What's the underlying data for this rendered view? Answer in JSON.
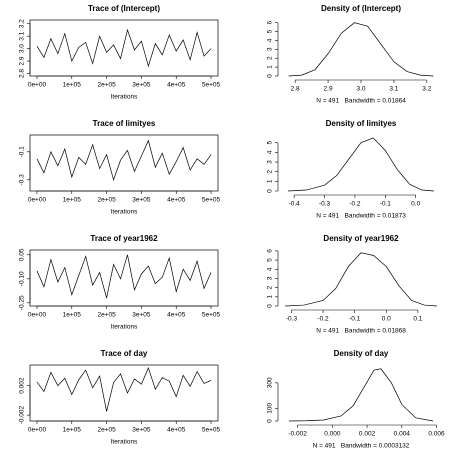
{
  "chart_data": [
    {
      "type": "line",
      "title": "Trace of (Intercept)",
      "xlabel": "Iterations",
      "box": true,
      "color": "#000000",
      "x": [
        0,
        20000,
        40000,
        60000,
        80000,
        100000,
        120000,
        140000,
        160000,
        180000,
        200000,
        220000,
        240000,
        260000,
        280000,
        300000,
        320000,
        340000,
        360000,
        380000,
        400000,
        420000,
        440000,
        460000,
        480000,
        500000
      ],
      "values": [
        3.02,
        2.93,
        3.08,
        2.96,
        3.12,
        2.9,
        3.01,
        3.05,
        2.88,
        3.1,
        2.97,
        3.03,
        2.92,
        3.15,
        2.99,
        3.06,
        2.86,
        3.04,
        2.95,
        3.11,
        2.98,
        3.07,
        2.91,
        3.13,
        2.94,
        3.0
      ],
      "xlim": [
        -20000,
        520000
      ],
      "xticks": [
        {
          "value": 0,
          "label": "0e+00"
        },
        {
          "value": 100000,
          "label": "1e+05"
        },
        {
          "value": 200000,
          "label": "2e+05"
        },
        {
          "value": 300000,
          "label": "3e+05"
        },
        {
          "value": 400000,
          "label": "4e+05"
        },
        {
          "value": 500000,
          "label": "5e+05"
        }
      ],
      "ylim": [
        2.78,
        3.23
      ],
      "yticks": [
        2.8,
        2.9,
        {
          "value": 3,
          "label": "3.0"
        },
        3.1,
        3.2
      ]
    },
    {
      "type": "line",
      "title": "Density of (Intercept)",
      "subtitle": "N = 491   Bandwidth = 0.01864",
      "box": false,
      "color": "#000000",
      "x": [
        2.78,
        2.82,
        2.86,
        2.9,
        2.94,
        2.98,
        3.02,
        3.06,
        3.1,
        3.14,
        3.18,
        3.22
      ],
      "values": [
        0,
        0.1,
        0.7,
        2.5,
        4.8,
        6.0,
        5.6,
        3.6,
        1.6,
        0.5,
        0.1,
        0
      ],
      "xlim": [
        2.76,
        3.24
      ],
      "xticks": [
        2.8,
        2.9,
        {
          "value": 3,
          "label": "3.0"
        },
        3.1,
        3.2
      ],
      "ylim": [
        0,
        6.3
      ],
      "yticks": [
        0,
        1,
        2,
        3,
        4,
        5,
        6
      ]
    },
    {
      "type": "line",
      "title": "Trace of limityes",
      "xlabel": "Iterations",
      "box": true,
      "color": "#000000",
      "x": [
        0,
        20000,
        40000,
        60000,
        80000,
        100000,
        120000,
        140000,
        160000,
        180000,
        200000,
        220000,
        240000,
        260000,
        280000,
        300000,
        320000,
        340000,
        360000,
        380000,
        400000,
        420000,
        440000,
        460000,
        480000,
        500000
      ],
      "values": [
        -0.15,
        -0.25,
        -0.1,
        -0.2,
        -0.08,
        -0.28,
        -0.14,
        -0.19,
        -0.05,
        -0.22,
        -0.12,
        -0.3,
        -0.16,
        -0.09,
        -0.24,
        -0.13,
        -0.02,
        -0.21,
        -0.11,
        -0.26,
        -0.17,
        -0.07,
        -0.23,
        -0.15,
        -0.19,
        -0.12
      ],
      "xlim": [
        -20000,
        520000
      ],
      "xticks": [
        {
          "value": 0,
          "label": "0e+00"
        },
        {
          "value": 100000,
          "label": "1e+05"
        },
        {
          "value": 200000,
          "label": "2e+05"
        },
        {
          "value": 300000,
          "label": "3e+05"
        },
        {
          "value": 400000,
          "label": "4e+05"
        },
        {
          "value": 500000,
          "label": "5e+05"
        }
      ],
      "ylim": [
        -0.38,
        0.02
      ],
      "yticks": [
        -0.3,
        -0.1
      ]
    },
    {
      "type": "line",
      "title": "Density of limityes",
      "subtitle": "N = 491   Bandwidth = 0.01873",
      "box": false,
      "color": "#000000",
      "x": [
        -0.42,
        -0.36,
        -0.3,
        -0.26,
        -0.22,
        -0.18,
        -0.14,
        -0.1,
        -0.06,
        -0.02,
        0.02,
        0.06
      ],
      "values": [
        0,
        0.1,
        0.6,
        1.6,
        3.3,
        5.0,
        5.5,
        4.2,
        2.2,
        0.7,
        0.1,
        0
      ],
      "xlim": [
        -0.44,
        0.08
      ],
      "xticks": [
        -0.4,
        -0.3,
        -0.2,
        -0.1,
        {
          "value": 0,
          "label": "0.0"
        }
      ],
      "ylim": [
        0,
        5.8
      ],
      "yticks": [
        0,
        1,
        2,
        3,
        4,
        5
      ]
    },
    {
      "type": "line",
      "title": "Trace of year1962",
      "xlabel": "Iterations",
      "box": true,
      "color": "#000000",
      "x": [
        0,
        20000,
        40000,
        60000,
        80000,
        100000,
        120000,
        140000,
        160000,
        180000,
        200000,
        220000,
        240000,
        260000,
        280000,
        300000,
        320000,
        340000,
        360000,
        380000,
        400000,
        420000,
        440000,
        460000,
        480000,
        500000
      ],
      "values": [
        -0.05,
        -0.15,
        0.02,
        -0.12,
        -0.03,
        -0.2,
        -0.08,
        0.04,
        -0.14,
        -0.06,
        -0.22,
        -0.01,
        -0.1,
        0.05,
        -0.17,
        -0.07,
        -0.02,
        -0.13,
        -0.09,
        0.03,
        -0.18,
        -0.04,
        -0.11,
        0.01,
        -0.16,
        -0.06
      ],
      "xlim": [
        -20000,
        520000
      ],
      "xticks": [
        {
          "value": 0,
          "label": "0e+00"
        },
        {
          "value": 100000,
          "label": "1e+05"
        },
        {
          "value": 200000,
          "label": "2e+05"
        },
        {
          "value": 300000,
          "label": "3e+05"
        },
        {
          "value": 400000,
          "label": "4e+05"
        },
        {
          "value": 500000,
          "label": "5e+05"
        }
      ],
      "ylim": [
        -0.27,
        0.08
      ],
      "yticks": [
        -0.25,
        {
          "value": -0.1,
          "label": "-0.10"
        },
        0.05
      ]
    },
    {
      "type": "line",
      "title": "Density of year1962",
      "subtitle": "N = 491   Bandwidth = 0.01868",
      "box": false,
      "color": "#000000",
      "x": [
        -0.32,
        -0.26,
        -0.2,
        -0.16,
        -0.12,
        -0.08,
        -0.04,
        0.0,
        0.04,
        0.08,
        0.12,
        0.16
      ],
      "values": [
        0,
        0.1,
        0.6,
        1.9,
        4.3,
        5.8,
        5.5,
        4.3,
        2.2,
        0.6,
        0.1,
        0
      ],
      "xlim": [
        -0.33,
        0.17
      ],
      "xticks": [
        -0.3,
        -0.2,
        -0.1,
        {
          "value": 0,
          "label": "0.0"
        },
        0.1
      ],
      "ylim": [
        0,
        6.1
      ],
      "yticks": [
        0,
        1,
        2,
        3,
        4,
        5,
        6
      ]
    },
    {
      "type": "line",
      "title": "Trace of day",
      "xlabel": "Iterations",
      "box": true,
      "color": "#000000",
      "x": [
        0,
        20000,
        40000,
        60000,
        80000,
        100000,
        120000,
        140000,
        160000,
        180000,
        200000,
        220000,
        240000,
        260000,
        280000,
        300000,
        320000,
        340000,
        360000,
        380000,
        400000,
        420000,
        440000,
        460000,
        480000,
        500000
      ],
      "values": [
        0.0025,
        0.0012,
        0.0038,
        0.002,
        0.003,
        0.0008,
        0.0028,
        0.0041,
        0.0017,
        0.0033,
        -0.0015,
        0.0024,
        0.0036,
        0.001,
        0.0029,
        0.0022,
        0.0044,
        0.0015,
        0.0031,
        0.0026,
        0.0005,
        0.0034,
        0.0019,
        0.0039,
        0.0023,
        0.0027
      ],
      "xlim": [
        -20000,
        520000
      ],
      "xticks": [
        {
          "value": 0,
          "label": "0e+00"
        },
        {
          "value": 100000,
          "label": "1e+05"
        },
        {
          "value": 200000,
          "label": "2e+05"
        },
        {
          "value": 300000,
          "label": "3e+05"
        },
        {
          "value": 400000,
          "label": "4e+05"
        },
        {
          "value": 500000,
          "label": "5e+05"
        }
      ],
      "ylim": [
        -0.0028,
        0.0048
      ],
      "yticks": [
        -0.002,
        0.002
      ]
    },
    {
      "type": "line",
      "title": "Density of day",
      "subtitle": "N = 491   Bandwidth = 0.0003132",
      "box": false,
      "color": "#000000",
      "x": [
        -0.0025,
        -0.0015,
        -0.0005,
        0.0005,
        0.0012,
        0.0018,
        0.0024,
        0.0028,
        0.0034,
        0.004,
        0.0048,
        0.0058
      ],
      "values": [
        0,
        2,
        8,
        40,
        120,
        260,
        400,
        410,
        300,
        130,
        25,
        0
      ],
      "xlim": [
        -0.0029,
        0.0062
      ],
      "xticks": [
        -0.002,
        {
          "value": 0,
          "label": "0.000"
        },
        0.002,
        0.004,
        0.006
      ],
      "ylim": [
        0,
        440
      ],
      "yticks": [
        0,
        100,
        300
      ]
    }
  ]
}
